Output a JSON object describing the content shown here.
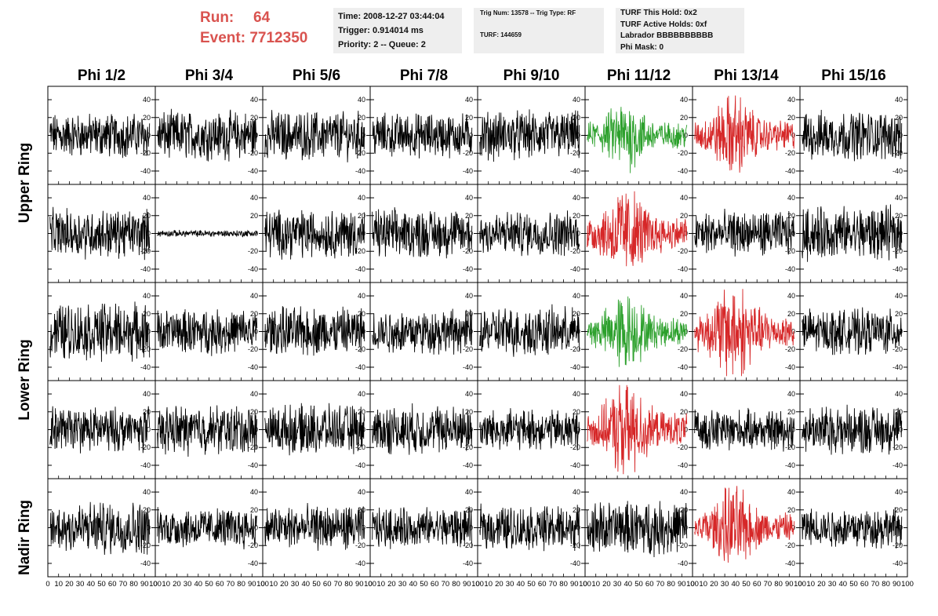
{
  "run": {
    "run_label": "Run:",
    "run_value": "64",
    "event_label": "Event:",
    "event_value": "7712350"
  },
  "info_box_1": {
    "line1": "Time: 2008-12-27 03:44:04",
    "line2": "Trigger: 0.914014 ms",
    "line3": "Priority: 2 -- Queue: 2"
  },
  "info_box_2": {
    "line1": "Trig Num: 13578 -- Trig Type: RF",
    "line2": "TURF: 144659"
  },
  "info_box_3": {
    "line1": "TURF This Hold: 0x2",
    "line2": "TURF Active Holds: 0xf",
    "line3": "Labrador BBBBBBBBBB",
    "line4": "Phi Mask: 0"
  },
  "colors": {
    "header_red": "#d9534f",
    "trace_black": "#000000",
    "trace_green": "#2ca02c",
    "trace_red": "#d62728",
    "info_bg": "#eeeeee"
  },
  "chart_data": {
    "type": "line",
    "columns": [
      "Phi 1/2",
      "Phi 3/4",
      "Phi 5/6",
      "Phi 7/8",
      "Phi 9/10",
      "Phi 11/12",
      "Phi 13/14",
      "Phi 15/16"
    ],
    "rows": [
      "Upper Ring",
      "Upper Ring",
      "Lower Ring",
      "Lower Ring",
      "Nadir Ring"
    ],
    "row_labels": [
      {
        "text": "Upper Ring",
        "spans_rows": [
          0,
          1
        ]
      },
      {
        "text": "Lower Ring",
        "spans_rows": [
          2,
          3
        ]
      },
      {
        "text": "Nadir Ring",
        "spans_rows": [
          4
        ]
      }
    ],
    "xlim": [
      0,
      100
    ],
    "ylim": [
      -55,
      55
    ],
    "y_ticks": [
      -40,
      -20,
      0,
      20,
      40
    ],
    "x_tick_labels": [
      "0",
      "10",
      "20",
      "30",
      "40",
      "50",
      "60",
      "70",
      "80",
      "90",
      "100"
    ],
    "cells": [
      [
        {
          "color": "black",
          "amp": 20
        },
        {
          "color": "black",
          "amp": 22
        },
        {
          "color": "black",
          "amp": 22
        },
        {
          "color": "black",
          "amp": 20
        },
        {
          "color": "black",
          "amp": 22
        },
        {
          "color": "green",
          "amp": 26,
          "pulse": true
        },
        {
          "color": "red",
          "amp": 30,
          "pulse": true
        },
        {
          "color": "black",
          "amp": 22
        }
      ],
      [
        {
          "color": "black",
          "amp": 22
        },
        {
          "color": "black",
          "amp": 3
        },
        {
          "color": "black",
          "amp": 22
        },
        {
          "color": "black",
          "amp": 22
        },
        {
          "color": "black",
          "amp": 20
        },
        {
          "color": "red",
          "amp": 34,
          "pulse": true
        },
        {
          "color": "black",
          "amp": 20
        },
        {
          "color": "black",
          "amp": 24
        }
      ],
      [
        {
          "color": "black",
          "amp": 26
        },
        {
          "color": "black",
          "amp": 20
        },
        {
          "color": "black",
          "amp": 22
        },
        {
          "color": "black",
          "amp": 20
        },
        {
          "color": "black",
          "amp": 22
        },
        {
          "color": "green",
          "amp": 28,
          "pulse": true
        },
        {
          "color": "red",
          "amp": 36,
          "pulse": true
        },
        {
          "color": "black",
          "amp": 20
        }
      ],
      [
        {
          "color": "black",
          "amp": 20
        },
        {
          "color": "black",
          "amp": 22
        },
        {
          "color": "black",
          "amp": 22
        },
        {
          "color": "black",
          "amp": 22
        },
        {
          "color": "black",
          "amp": 18
        },
        {
          "color": "red",
          "amp": 34,
          "pulse": true
        },
        {
          "color": "black",
          "amp": 18
        },
        {
          "color": "black",
          "amp": 22
        }
      ],
      [
        {
          "color": "black",
          "amp": 24
        },
        {
          "color": "black",
          "amp": 18
        },
        {
          "color": "black",
          "amp": 20
        },
        {
          "color": "black",
          "amp": 18
        },
        {
          "color": "black",
          "amp": 20
        },
        {
          "color": "black",
          "amp": 24
        },
        {
          "color": "red",
          "amp": 30,
          "pulse": true
        },
        {
          "color": "black",
          "amp": 18
        }
      ]
    ]
  }
}
